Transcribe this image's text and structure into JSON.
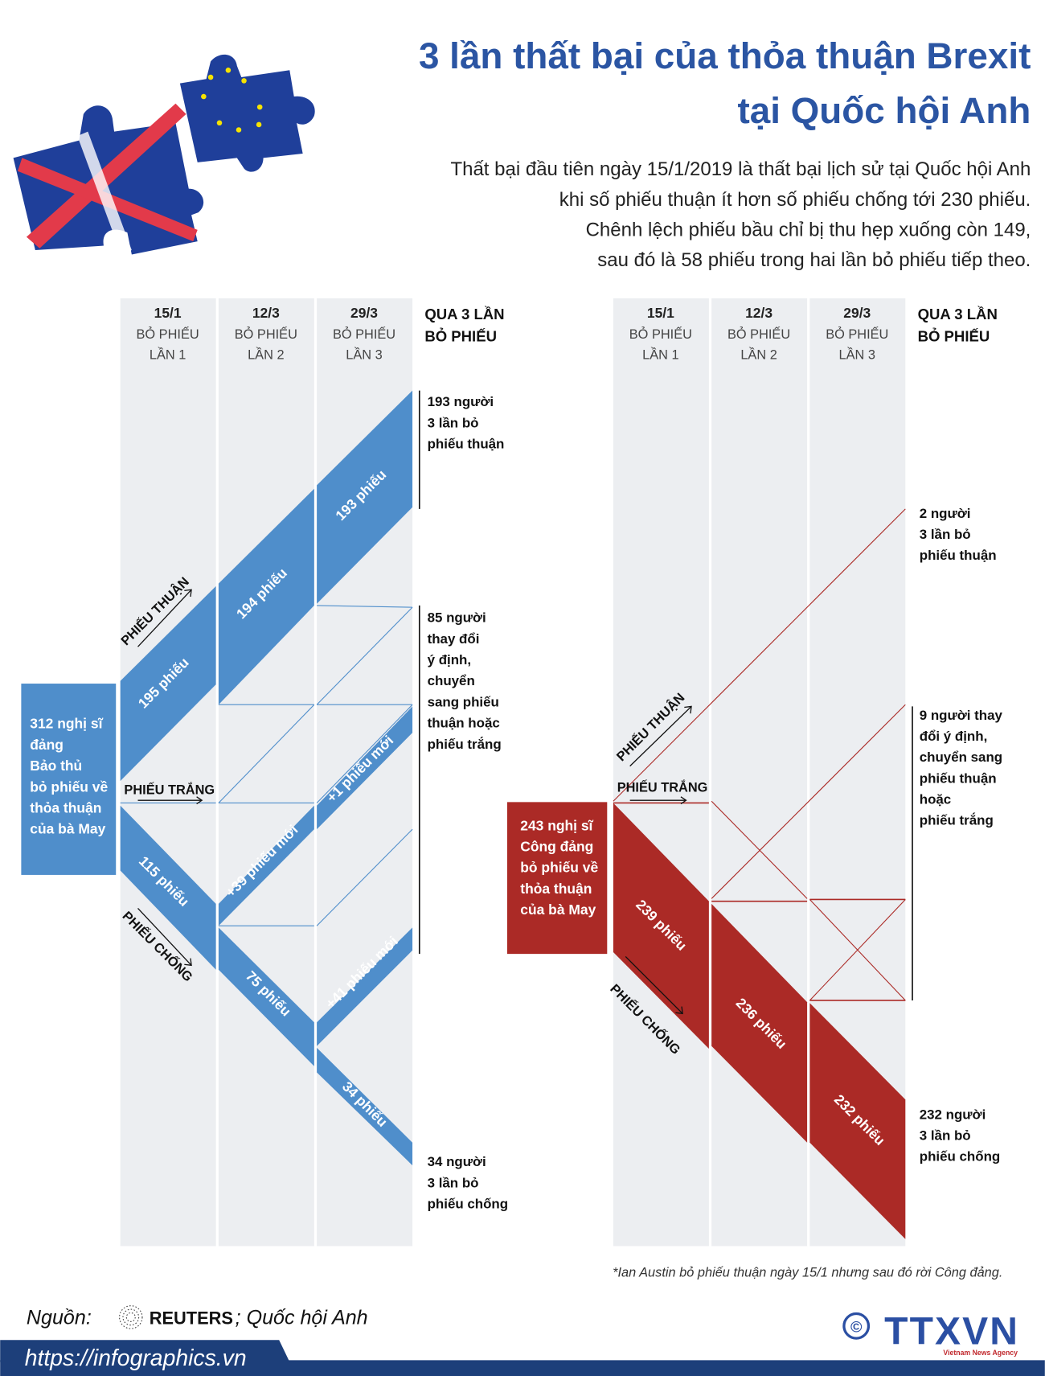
{
  "title": {
    "line1": "3 lần thất bại của thỏa thuận Brexit",
    "line2": "tại Quốc hội Anh"
  },
  "intro": [
    "Thất bại đầu tiên ngày 15/1/2019  là thất bại lịch sử tại Quốc hội Anh",
    "khi số phiếu thuận ít hơn số phiếu chống tới 230 phiếu.",
    "Chênh lệch phiếu bầu chỉ bị thu hẹp xuống còn 149,",
    "sau đó là 58 phiếu trong hai lần bỏ phiếu tiếp theo."
  ],
  "colors": {
    "title": "#2b55a3",
    "conservative": "#4f8ecb",
    "labour": "#ab2a26",
    "column_bg": "#eceef1",
    "footer_bar": "#1d3f7a"
  },
  "left_chart": {
    "columns": [
      {
        "date": "15/1",
        "line1": "BỎ PHIẾU",
        "line2": "LẦN 1"
      },
      {
        "date": "12/3",
        "line1": "BỎ PHIẾU",
        "line2": "LẦN 2"
      },
      {
        "date": "29/3",
        "line1": "BỎ PHIẾU",
        "line2": "LẦN 3"
      }
    ],
    "summary_header": [
      "QUA 3 LẦN",
      "BỎ PHIẾU"
    ],
    "party_box": [
      "312 nghị sĩ",
      "đảng",
      "Bảo thủ",
      "bỏ phiếu về",
      "thỏa thuận",
      "của bà May"
    ],
    "arrows": {
      "for": "PHIẾU THUẬN",
      "abstain": "PHIẾU TRẮNG",
      "against": "PHIẾU CHỐNG"
    },
    "flows": {
      "for_1": "195 phiếu",
      "for_2": "194 phiếu",
      "for_3": "193 phiếu",
      "new_for_3": "+1 phiếu mới",
      "new_for_2": "+39 phiếu mới",
      "new_for_3b": "+41 phiếu mới",
      "against_1": "115 phiếu",
      "against_2": "75 phiếu",
      "against_3": "34 phiếu"
    },
    "notes": [
      [
        "193 người",
        "3 lần bỏ",
        "phiếu thuận"
      ],
      [
        "85 người",
        "thay đổi",
        "ý định,",
        "chuyển",
        "sang phiếu",
        "thuận hoặc",
        "phiếu trắng"
      ],
      [
        "34 người",
        "3 lần bỏ",
        "phiếu chống"
      ]
    ]
  },
  "right_chart": {
    "columns": [
      {
        "date": "15/1",
        "line1": "BỎ PHIẾU",
        "line2": "LẦN 1"
      },
      {
        "date": "12/3",
        "line1": "BỎ PHIẾU",
        "line2": "LẦN 2"
      },
      {
        "date": "29/3",
        "line1": "BỎ PHIẾU",
        "line2": "LẦN 3"
      }
    ],
    "summary_header": [
      "QUA 3 LẦN",
      "BỎ PHIẾU"
    ],
    "party_box": [
      "243 nghị sĩ",
      "Công đảng",
      "bỏ phiếu về",
      "thỏa thuận",
      "của bà May"
    ],
    "arrows": {
      "for": "PHIẾU THUẬN",
      "abstain": "PHIẾU TRẮNG",
      "against": "PHIẾU CHỐNG"
    },
    "flows": {
      "against_1": "239 phiếu",
      "against_2": "236 phiếu",
      "against_3": "232 phiếu"
    },
    "notes": [
      [
        "2 người",
        "3 lần bỏ",
        "phiếu thuận"
      ],
      [
        "9 người thay",
        "đổi ý định,",
        "chuyển sang",
        "phiếu thuận",
        "hoặc",
        "phiếu trắng"
      ],
      [
        "232 người",
        "3 lần bỏ",
        "phiếu chống"
      ]
    ]
  },
  "footnote": "*Ian Austin bỏ phiếu thuận ngày 15/1 nhưng sau đó rời Công đảng.",
  "source": {
    "label": "Nguồn:",
    "reuters": "REUTERS",
    "rest": "; Quốc hội Anh"
  },
  "website": "https://infographics.vn",
  "logo": {
    "name": "TTXVN",
    "subtitle": "Vietnam News Agency",
    "copyright": "©"
  }
}
